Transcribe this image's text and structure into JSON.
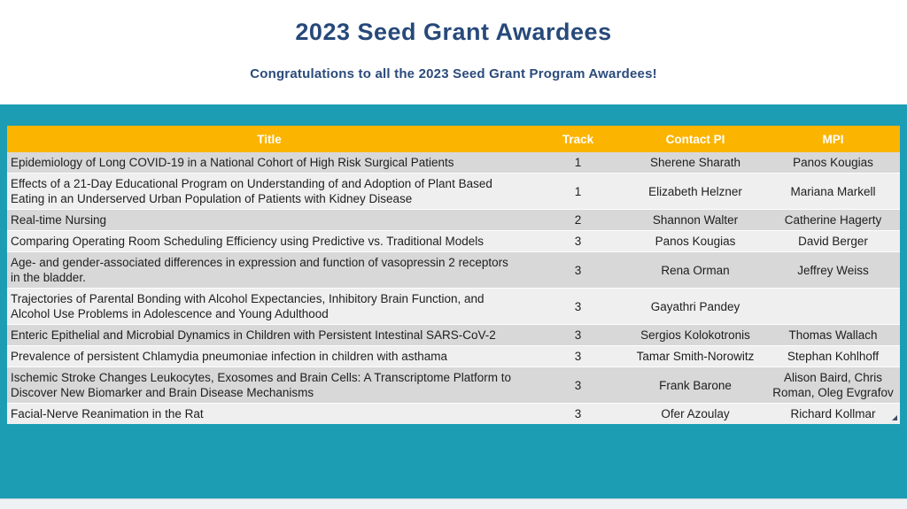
{
  "page": {
    "title": "2023 Seed Grant Awardees",
    "subtitle": "Congratulations to all the 2023 Seed Grant Program Awardees!"
  },
  "colors": {
    "teal_panel": "#1D9DB4",
    "header_yellow": "#FBB400",
    "title_navy": "#27497A",
    "row_gray": "#D8D8D8",
    "row_light": "#EFEFEF"
  },
  "table": {
    "columns": [
      "Title",
      "Track",
      "Contact PI",
      "MPI"
    ],
    "rows": [
      {
        "title": "Epidemiology of Long COVID-19 in a National Cohort of High Risk Surgical Patients",
        "track": "1",
        "contact_pi": "Sherene Sharath",
        "mpi": "Panos Kougias"
      },
      {
        "title": "Effects of a 21-Day Educational Program on Understanding of and Adoption of Plant Based Eating in an Underserved Urban Population of Patients with Kidney Disease",
        "track": "1",
        "contact_pi": "Elizabeth Helzner",
        "mpi": "Mariana Markell"
      },
      {
        "title": "Real-time Nursing",
        "track": "2",
        "contact_pi": "Shannon Walter",
        "mpi": "Catherine Hagerty"
      },
      {
        "title": "Comparing Operating Room Scheduling Efficiency using Predictive vs. Traditional Models",
        "track": "3",
        "contact_pi": "Panos Kougias",
        "mpi": "David Berger"
      },
      {
        "title": "Age- and gender-associated differences in expression and function of vasopressin 2 receptors in the bladder.",
        "track": "3",
        "contact_pi": "Rena Orman",
        "mpi": "Jeffrey Weiss"
      },
      {
        "title": "Trajectories of Parental Bonding with Alcohol Expectancies, Inhibitory Brain Function, and Alcohol Use Problems in Adolescence and Young Adulthood",
        "track": "3",
        "contact_pi": "Gayathri Pandey",
        "mpi": ""
      },
      {
        "title": "Enteric Epithelial and Microbial Dynamics in Children with Persistent Intestinal SARS-CoV-2",
        "track": "3",
        "contact_pi": "Sergios Kolokotronis",
        "mpi": "Thomas Wallach"
      },
      {
        "title": "Prevalence of persistent Chlamydia pneumoniae infection in children with asthama",
        "track": "3",
        "contact_pi": "Tamar Smith-Norowitz",
        "mpi": "Stephan Kohlhoff"
      },
      {
        "title": "Ischemic Stroke Changes Leukocytes, Exosomes and Brain Cells: A Transcriptome Platform to Discover New Biomarker and Brain Disease Mechanisms",
        "track": "3",
        "contact_pi": "Frank Barone",
        "mpi": "Alison Baird, Chris Roman, Oleg Evgrafov"
      },
      {
        "title": "Facial-Nerve Reanimation in the Rat",
        "track": "3",
        "contact_pi": "Ofer Azoulay",
        "mpi": "Richard Kollmar"
      }
    ]
  }
}
